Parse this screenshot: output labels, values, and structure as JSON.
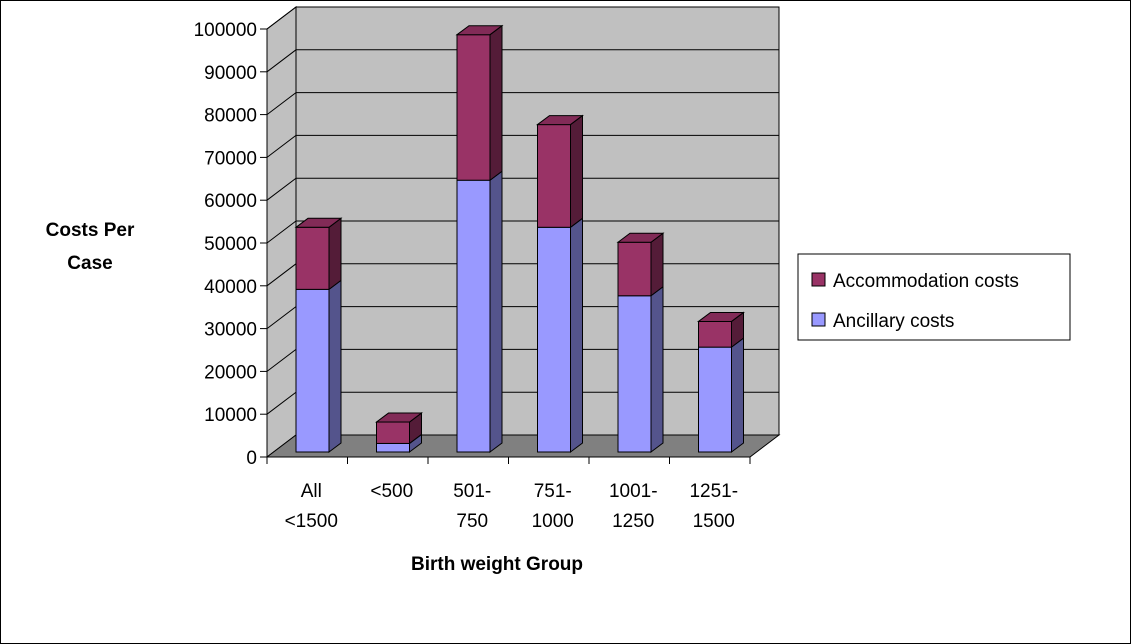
{
  "chart_data": {
    "type": "bar",
    "stacked": true,
    "three_d": true,
    "categories": [
      [
        "All",
        "<1500"
      ],
      [
        "<500"
      ],
      [
        "501-",
        "750"
      ],
      [
        "751-",
        "1000"
      ],
      [
        "1001-",
        "1250"
      ],
      [
        "1251-",
        "1500"
      ]
    ],
    "series": [
      {
        "name": "Ancillary costs",
        "values": [
          38000,
          2000,
          63500,
          52500,
          36500,
          24500
        ],
        "color": "#9999FF"
      },
      {
        "name": "Accommodation costs",
        "values": [
          14500,
          5000,
          34000,
          24000,
          12500,
          6000
        ],
        "color": "#993366"
      }
    ],
    "xlabel": "Birth weight Group",
    "ylabel": [
      "Costs Per",
      "Case"
    ],
    "ylim": [
      0,
      100000
    ],
    "yticks": [
      "0",
      "10000",
      "20000",
      "30000",
      "40000",
      "50000",
      "60000",
      "70000",
      "80000",
      "90000",
      "100000"
    ],
    "grid": true,
    "wall_color": "#C0C0C0",
    "floor_color": "#808080",
    "legend_position": "right",
    "legend_order": [
      "Accommodation costs",
      "Ancillary costs"
    ]
  }
}
